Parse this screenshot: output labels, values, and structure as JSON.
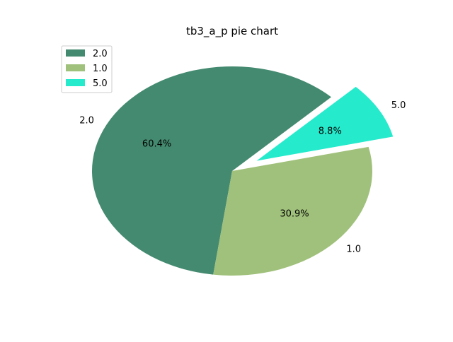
{
  "chart_data": {
    "type": "pie",
    "title": "tb3_a_p pie chart",
    "categories": [
      "2.0",
      "1.0",
      "5.0"
    ],
    "values": [
      60.4,
      30.9,
      8.8
    ],
    "percent_labels": [
      "60.4%",
      "30.9%",
      "8.8%"
    ],
    "colors": [
      "#448a70",
      "#a0c17b",
      "#25eacc"
    ],
    "exploded": [
      false,
      false,
      true
    ],
    "legend": {
      "placement": "upper-left",
      "entries": [
        "2.0",
        "1.0",
        "5.0"
      ]
    }
  }
}
